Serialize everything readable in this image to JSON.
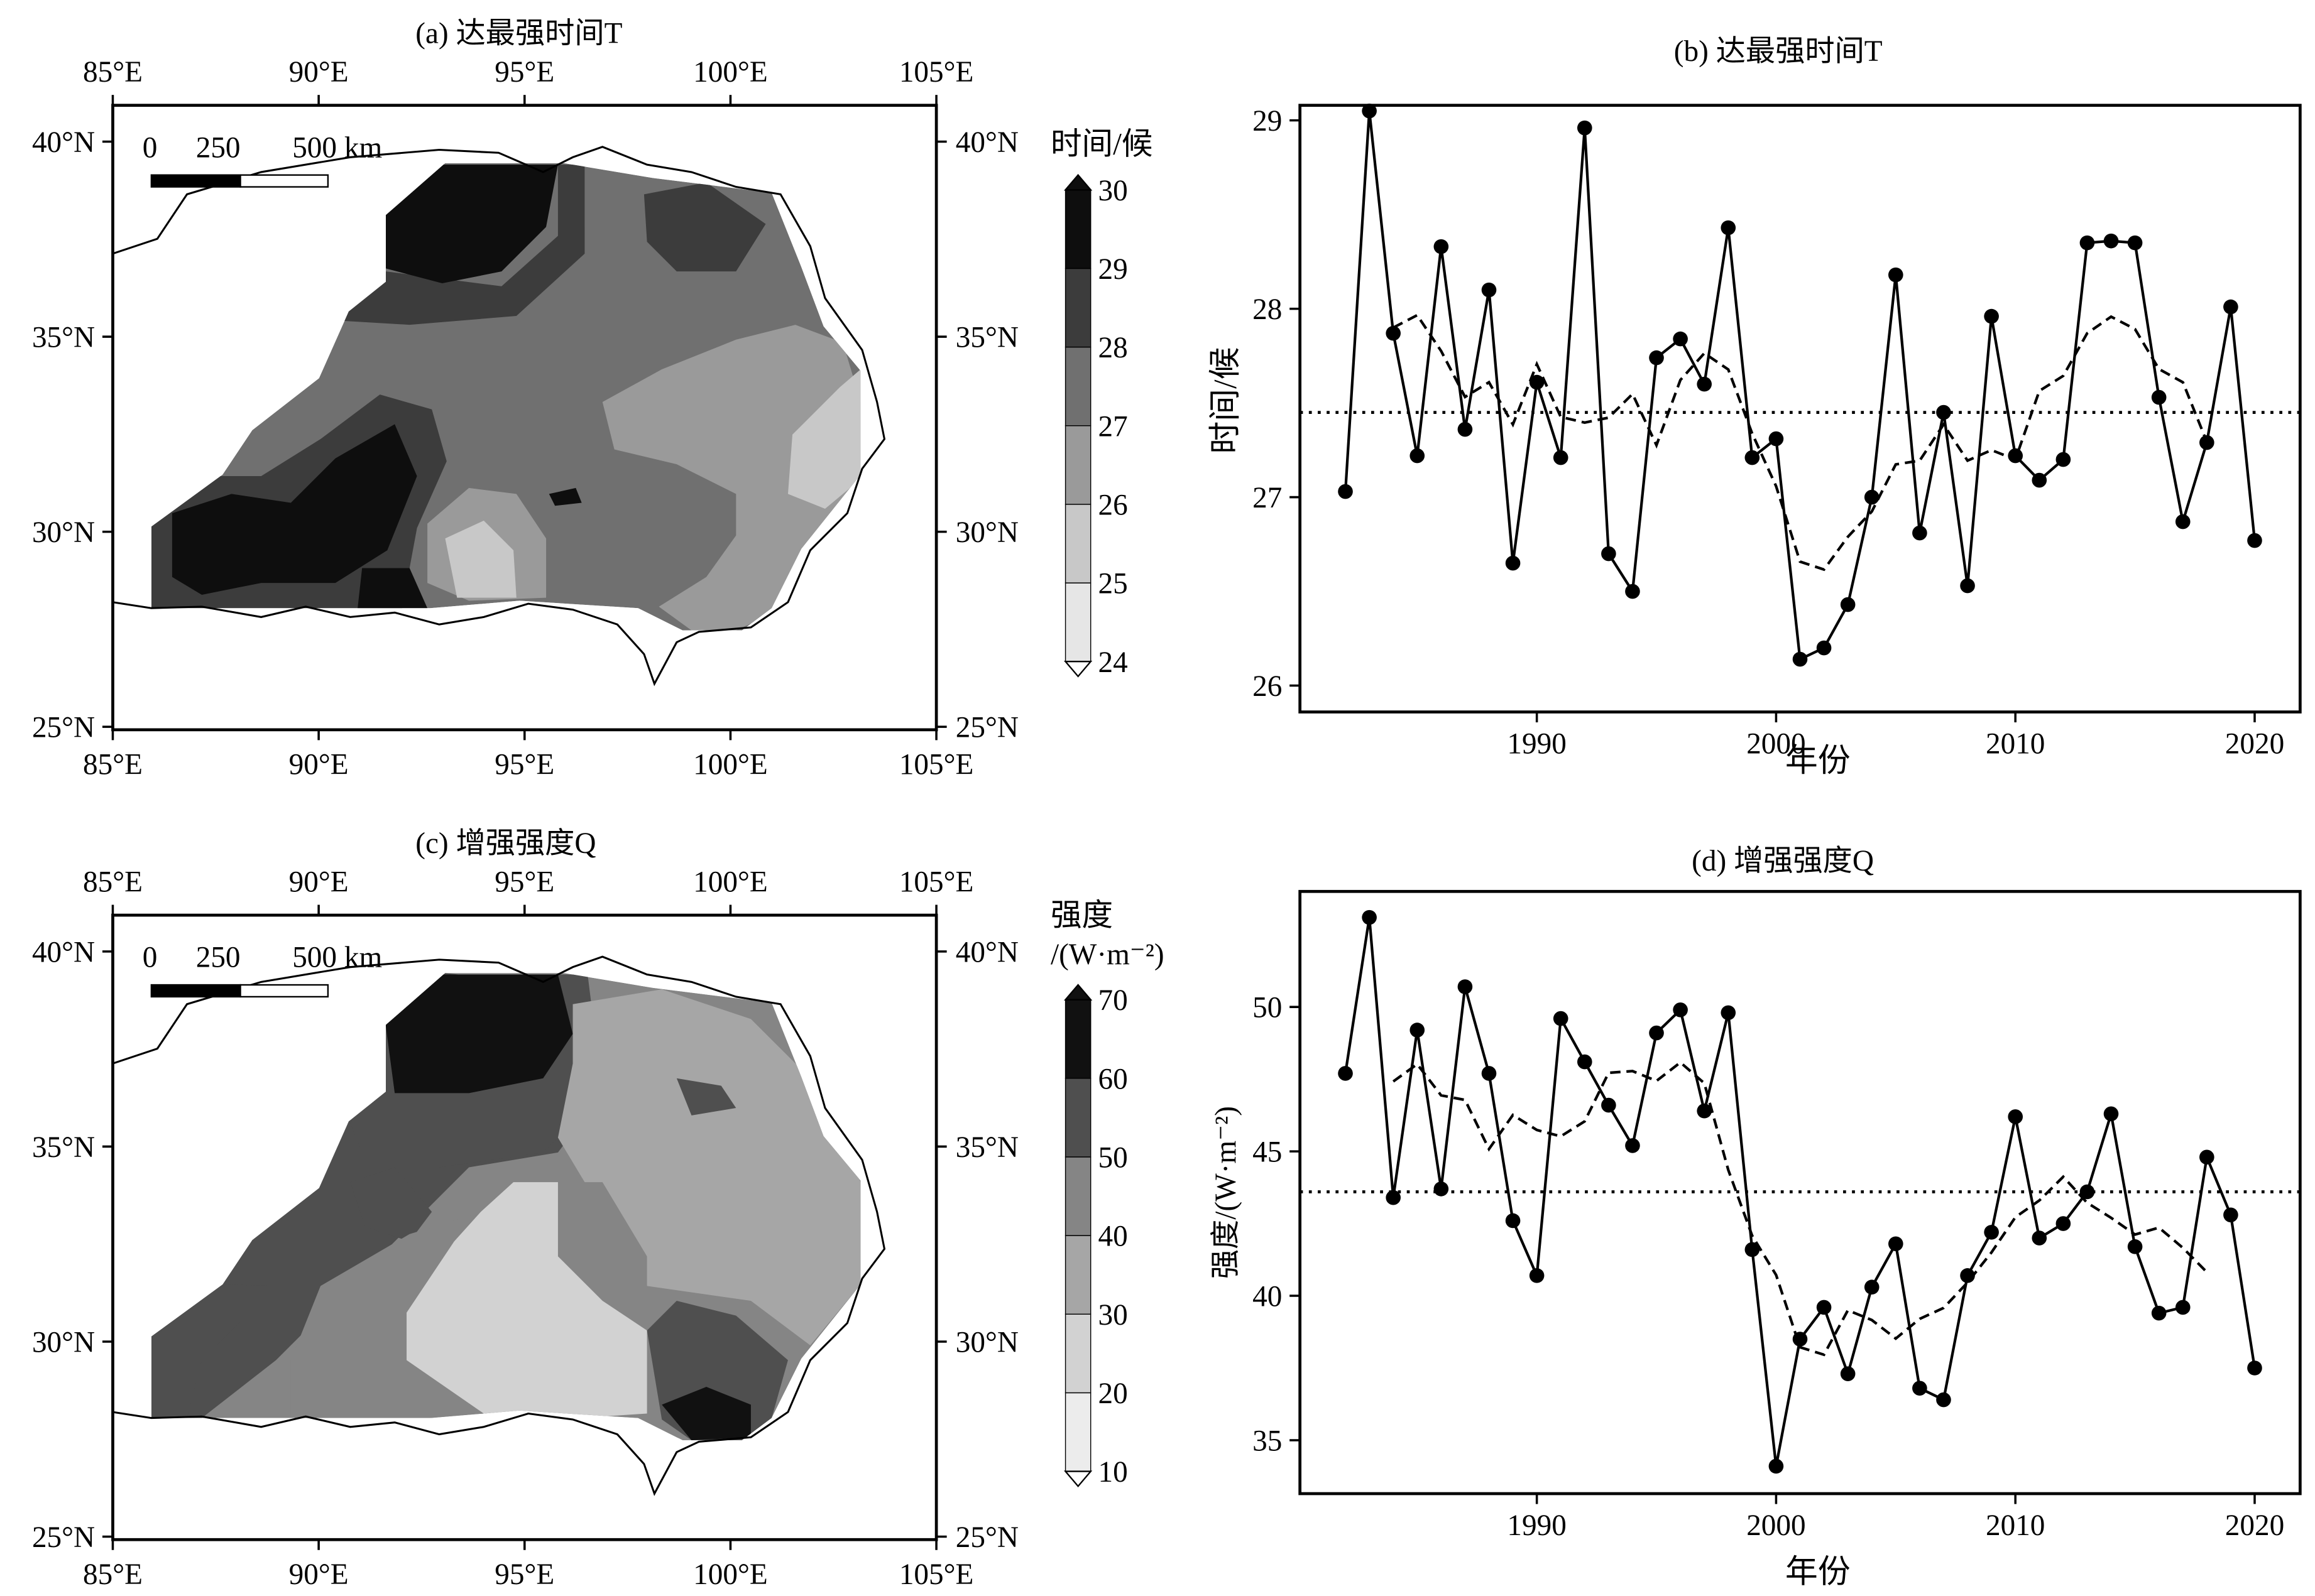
{
  "maps": [
    {
      "title": "(a) 达最强时间T",
      "lon_labels": [
        "85°E",
        "90°E",
        "95°E",
        "100°E",
        "105°E"
      ],
      "lat_labels": [
        "25°N",
        "30°N",
        "35°N",
        "40°N"
      ],
      "scale_bar": {
        "labels": [
          "0",
          "250",
          "500 km"
        ]
      },
      "colorbar": {
        "title_line1": "时间/候",
        "title_line2": "",
        "labels": [
          "24",
          "25",
          "26",
          "27",
          "28",
          "29",
          "30"
        ],
        "colors": [
          "#e6e6e6",
          "#c8c8c8",
          "#9a9a9a",
          "#707070",
          "#3c3c3c",
          "#0e0e0e"
        ]
      }
    },
    {
      "title": "(c) 增强强度Q",
      "lon_labels": [
        "85°E",
        "90°E",
        "95°E",
        "100°E",
        "105°E"
      ],
      "lat_labels": [
        "25°N",
        "30°N",
        "35°N",
        "40°N"
      ],
      "scale_bar": {
        "labels": [
          "0",
          "250",
          "500 km"
        ]
      },
      "colorbar": {
        "title_line1": "强度",
        "title_line2": "/(W·m⁻²)",
        "labels": [
          "10",
          "20",
          "30",
          "40",
          "50",
          "60",
          "70"
        ],
        "colors": [
          "#ececec",
          "#d2d2d2",
          "#a6a6a6",
          "#858585",
          "#4f4f4f",
          "#111111"
        ]
      }
    }
  ],
  "chart_data": [
    {
      "type": "line",
      "title": "(b) 达最强时间T",
      "xlabel": "年份",
      "ylabel": "时间/候",
      "xlim": [
        1980.1,
        2021.9
      ],
      "ylim": [
        25.86,
        29.08
      ],
      "xticks": [
        1990,
        2000,
        2010,
        2020
      ],
      "yticks": [
        26,
        27,
        28,
        29
      ],
      "x": [
        1982,
        1983,
        1984,
        1985,
        1986,
        1987,
        1988,
        1989,
        1990,
        1991,
        1992,
        1993,
        1994,
        1995,
        1996,
        1997,
        1998,
        1999,
        2000,
        2001,
        2002,
        2003,
        2004,
        2005,
        2006,
        2007,
        2008,
        2009,
        2010,
        2011,
        2012,
        2013,
        2014,
        2015,
        2016,
        2017,
        2018,
        2019,
        2020
      ],
      "series": [
        {
          "name": "annual",
          "style": "solid-markers",
          "values": [
            27.03,
            29.05,
            27.87,
            27.22,
            28.33,
            27.36,
            28.1,
            26.65,
            27.61,
            27.21,
            28.96,
            26.7,
            26.5,
            27.74,
            27.84,
            27.6,
            28.43,
            27.21,
            27.31,
            26.14,
            26.2,
            26.43,
            27.0,
            28.18,
            26.81,
            27.45,
            26.53,
            27.96,
            27.22,
            27.09,
            27.2,
            28.35,
            28.36,
            28.35,
            27.53,
            26.87,
            27.29,
            28.01,
            26.77
          ]
        },
        {
          "name": "5-year running mean",
          "style": "dashed",
          "window": 5
        },
        {
          "name": "mean",
          "style": "dotted",
          "value": 27.45
        }
      ]
    },
    {
      "type": "line",
      "title": "(d) 增强强度Q",
      "xlabel": "年份",
      "ylabel": "强度/(W·m⁻²)",
      "xlim": [
        1980.1,
        2021.9
      ],
      "ylim": [
        33.15,
        54.0
      ],
      "xticks": [
        1990,
        2000,
        2010,
        2020
      ],
      "yticks": [
        35,
        40,
        45,
        50
      ],
      "x": [
        1982,
        1983,
        1984,
        1985,
        1986,
        1987,
        1988,
        1989,
        1990,
        1991,
        1992,
        1993,
        1994,
        1995,
        1996,
        1997,
        1998,
        1999,
        2000,
        2001,
        2002,
        2003,
        2004,
        2005,
        2006,
        2007,
        2008,
        2009,
        2010,
        2011,
        2012,
        2013,
        2014,
        2015,
        2016,
        2017,
        2018,
        2019,
        2020
      ],
      "series": [
        {
          "name": "annual",
          "style": "solid-markers",
          "values": [
            47.7,
            53.1,
            43.4,
            49.2,
            43.7,
            50.7,
            47.7,
            42.6,
            40.7,
            49.6,
            48.1,
            46.6,
            45.2,
            49.1,
            49.9,
            46.4,
            49.8,
            41.6,
            34.1,
            38.5,
            39.6,
            37.3,
            40.3,
            41.8,
            36.8,
            36.4,
            40.7,
            42.2,
            46.2,
            42.0,
            42.5,
            43.6,
            46.3,
            41.7,
            39.4,
            39.6,
            44.8,
            42.8,
            37.5
          ]
        },
        {
          "name": "5-year running mean",
          "style": "dashed",
          "window": 5
        },
        {
          "name": "mean",
          "style": "dotted",
          "value": 43.6
        }
      ]
    }
  ]
}
